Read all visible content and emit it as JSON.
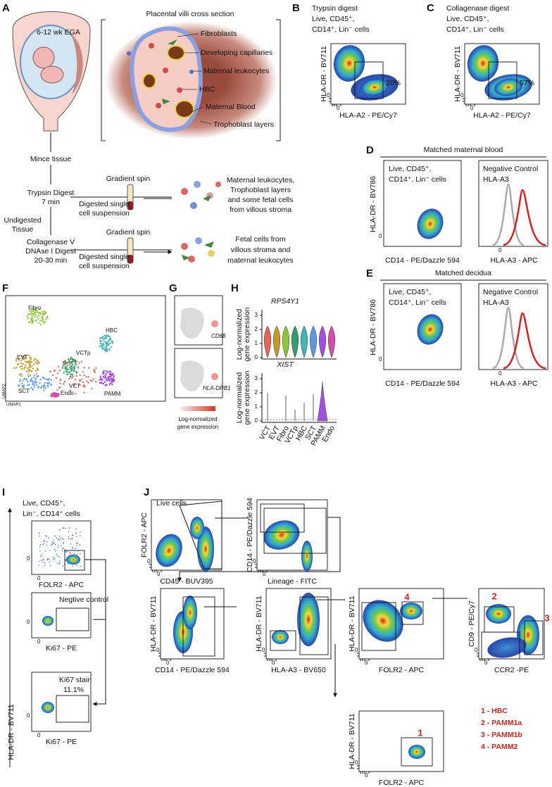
{
  "panel_a": {
    "letter": "A",
    "ega": "6-12 wk EGA",
    "villi_title": "Placental villi cross section",
    "villi_labels": [
      "Fibroblasts",
      "Developing capillaries",
      "Maternal leukocytes",
      "HBC",
      "Maternal Blood",
      "Trophoblast layers"
    ],
    "mince": "Mince tissue",
    "trypsin": [
      "Trypsin Digest",
      "7 min"
    ],
    "undigested": [
      "Undigested",
      "Tissue"
    ],
    "collagenase": [
      "Collagenase V",
      "DNAse I Digest",
      "20-30 min"
    ],
    "gradient_spin": "Gradient spin",
    "digested": [
      "Digested single",
      "cell suspension"
    ],
    "trypsin_result": [
      "Maternal leukocytes,",
      "Trophoblast layers",
      "and some fetal cells",
      "from villous stroma"
    ],
    "collagenase_result": [
      "Fetal cells from",
      "villous stroma and",
      "maternal leukocytes"
    ]
  },
  "zero_tick": "0",
  "panel_b": {
    "letter": "B",
    "title": [
      "Trypsin digest",
      "Live, CD45⁺,",
      "CD14⁺, Lin⁻ cells"
    ],
    "y_label": "HLA-DR - BV711",
    "x_label": "HLA-A2 - PE/Cy7",
    "gate": "20%"
  },
  "panel_c": {
    "letter": "C",
    "title": [
      "Collagenase digest",
      "Live, CD45⁺,",
      "CD14⁺, Lin⁻ cells"
    ],
    "y_label": "HLA-DR - BV711",
    "x_label": "HLA-A2 - PE/Cy7",
    "gate": "57%"
  },
  "panel_d": {
    "letter": "D",
    "title": "Matched maternal blood",
    "gate_label": [
      "Live, CD45⁺,",
      "CD14⁺, Lin⁻ cells"
    ],
    "y_label": "HLA-DR - BV786",
    "x_label": "CD14 - PE/Dazzle 594",
    "legend": [
      "Negative Control",
      "HLA-A3"
    ],
    "hist_x_label": "HLA-A3 - APC"
  },
  "panel_e": {
    "letter": "E",
    "title": "Matched decidua",
    "gate_label": [
      "Live, CD45⁺,",
      "CD14⁺, Lin⁻ cells"
    ],
    "y_label": "HLA-DR - BV786",
    "x_label": "CD14 - PE/Dazzle 594",
    "legend": [
      "Negative Control",
      "HLA-A3"
    ],
    "hist_x_label": "HLA-A3 - APC"
  },
  "panel_f": {
    "letter": "F",
    "clusters": [
      "Fibro",
      "HBC",
      "EVT",
      "VCTp",
      "SCT",
      "VCT",
      "PAMM",
      "Endo"
    ],
    "y_label": "UMAP2",
    "x_label": "UMAP1"
  },
  "panel_g": {
    "letter": "G",
    "genes": [
      "CD68",
      "HLA-DRB1"
    ],
    "colorbar_label": [
      "Log-normalized",
      "gene expression"
    ]
  },
  "panel_h": {
    "letter": "H",
    "genes": [
      "RPS4Y1",
      "XIST"
    ],
    "y_label": [
      "Log-normalized",
      "gene expression"
    ],
    "yticks": [
      0,
      1,
      2,
      3
    ],
    "categories": [
      "VCT",
      "EVT",
      "Fibro",
      "VCTp",
      "HBC",
      "SCT",
      "PAMM",
      "Endo"
    ]
  },
  "panel_i": {
    "letter": "I",
    "title": [
      "Live, CD45⁺,",
      "Lin⁻, CD14⁺ cells"
    ],
    "x_labels": [
      "FOLR2 - APC",
      "Ki67 - PE",
      "Ki67 - PE"
    ],
    "plot_titles": [
      "Negtive control",
      "Ki67 stain"
    ],
    "gate": "11.1%",
    "y_label": "HLA-DR - BV711"
  },
  "panel_j": {
    "letter": "J",
    "title": "Live cells",
    "y_labels": [
      "FOLR2 - APC",
      "CD14 - PE/Dazzle 594",
      "HLA-DR - BV711",
      "HLA-DR - BV711",
      "HLA-DR - BV711",
      "CD9 - PE/Cy7",
      "HLA-DR - BV711"
    ],
    "x_labels": [
      "CD45 - BUV395",
      "Lineage - FITC",
      "CD14 - PE/Dazzle 594",
      "HLA-A3 - BV650",
      "FOLR2 - APC",
      "CCR2 -PE",
      "FOLR2 - APC"
    ],
    "gates": [
      "4",
      "2",
      "3",
      "1"
    ],
    "legend": [
      "1 - HBC",
      "2 - PAMM1a",
      "3 - PAMM1b",
      "4 - PAMM2"
    ]
  }
}
